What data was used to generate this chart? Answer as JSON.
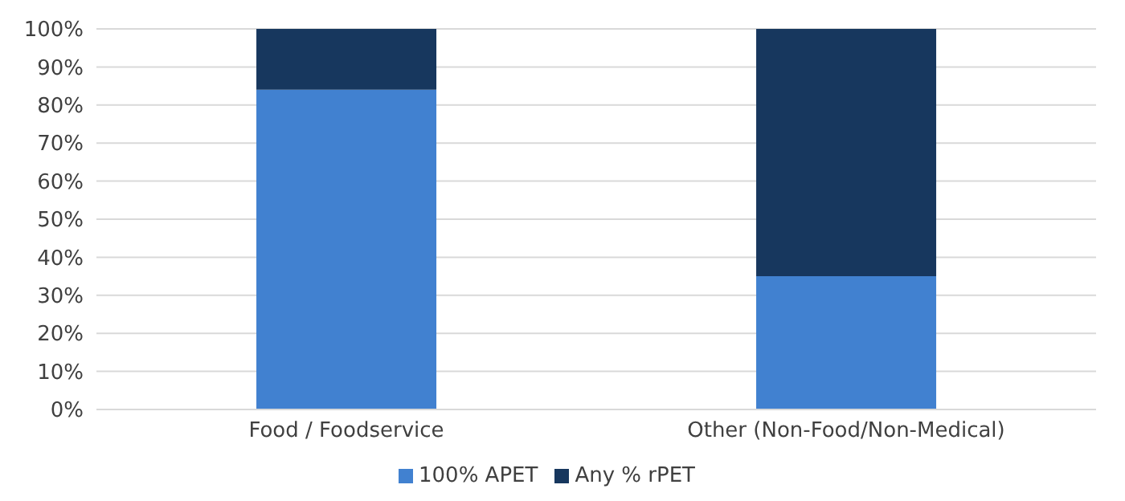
{
  "chart_data": {
    "type": "bar",
    "stacked": true,
    "categories": [
      "Food / Foodservice",
      "Other (Non-Food/Non-Medical)"
    ],
    "series": [
      {
        "name": "100% APET",
        "color": "#4181d0",
        "values": [
          84,
          35
        ]
      },
      {
        "name": "Any % rPET",
        "color": "#17375e",
        "values": [
          16,
          65
        ]
      }
    ],
    "ylim": [
      0,
      100
    ],
    "yticks": [
      {
        "value": 0,
        "label": "0%"
      },
      {
        "value": 10,
        "label": "10%"
      },
      {
        "value": 20,
        "label": "20%"
      },
      {
        "value": 30,
        "label": "30%"
      },
      {
        "value": 40,
        "label": "40%"
      },
      {
        "value": 50,
        "label": "50%"
      },
      {
        "value": 60,
        "label": "60%"
      },
      {
        "value": 70,
        "label": "70%"
      },
      {
        "value": 80,
        "label": "80%"
      },
      {
        "value": 90,
        "label": "90%"
      },
      {
        "value": 100,
        "label": "100%"
      }
    ],
    "grid": "y",
    "legend": "bottom"
  }
}
